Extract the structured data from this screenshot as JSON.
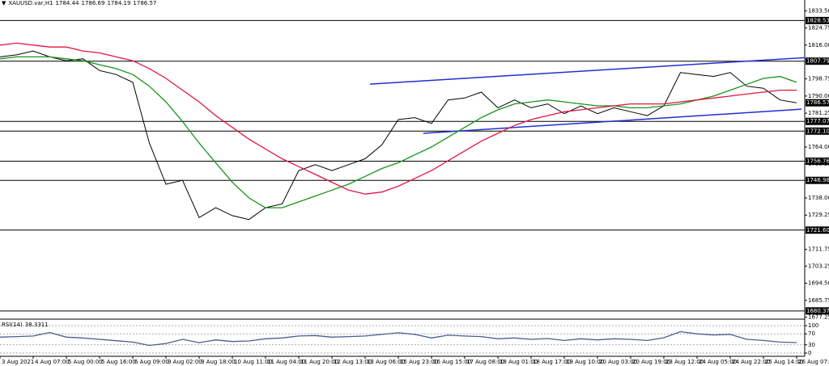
{
  "chart_data": [
    {
      "type": "line",
      "symbol": "XAUUSD.var,H1",
      "ohlc": [
        1784.44,
        1786.69,
        1784.19,
        1786.57
      ],
      "categories": [
        "3 Aug 2021",
        null,
        "4 Aug 07:00",
        null,
        "5 Aug 00:00",
        null,
        "5 Aug 16:00",
        null,
        "6 Aug 09:00",
        null,
        "9 Aug 02:00",
        null,
        "9 Aug 18:00",
        null,
        "10 Aug 11:00",
        null,
        "11 Aug 04:00",
        null,
        "11 Aug 20:00",
        null,
        "12 Aug 13:00",
        null,
        "13 Aug 06:00",
        null,
        "15 Aug 23:00",
        null,
        "16 Aug 15:00",
        null,
        "17 Aug 08:00",
        null,
        "18 Aug 01:00",
        null,
        "18 Aug 17:00",
        null,
        "19 Aug 10:00",
        null,
        "20 Aug 03:00",
        null,
        "20 Aug 19:00",
        null,
        "23 Aug 12:00",
        null,
        "24 Aug 05:00",
        null,
        "24 Aug 22:00",
        null,
        "25 Aug 14:00",
        null,
        "26 Aug 07:00"
      ],
      "series": [
        {
          "color": "#000000",
          "values": [
            1810,
            1811,
            1813,
            1810,
            1808,
            1809,
            1803,
            1801,
            1797,
            1766,
            1745,
            1747,
            1728,
            1733,
            1729,
            1727,
            1733,
            1735,
            1752,
            1755,
            1752,
            1755,
            1758,
            1765,
            1778,
            1779,
            1776,
            1788,
            1789,
            1792,
            1784,
            1788,
            1784,
            1786,
            1781,
            1785,
            1781,
            1784,
            1782,
            1780,
            1785,
            1802,
            1801,
            1800,
            1802,
            1795,
            1794,
            1788,
            1786.57
          ]
        },
        {
          "color": "#17951a",
          "values": [
            1809,
            1810,
            1810,
            1810,
            1809,
            1808,
            1806,
            1804,
            1801,
            1795,
            1787,
            1777,
            1766,
            1756,
            1746,
            1738,
            1733,
            1733,
            1736,
            1739,
            1742,
            1745,
            1749,
            1753,
            1756,
            1760,
            1764,
            1769,
            1774,
            1779,
            1783,
            1786,
            1787,
            1788,
            1787,
            1786,
            1785,
            1785,
            1784,
            1784,
            1785,
            1786,
            1788,
            1790,
            1793,
            1796,
            1799,
            1800,
            1797
          ]
        },
        {
          "color": "#e5163f",
          "values": [
            1816,
            1817,
            1816,
            1815,
            1815,
            1813,
            1812,
            1810,
            1808,
            1804,
            1799,
            1793,
            1787,
            1780,
            1774,
            1768,
            1763,
            1758,
            1754,
            1750,
            1746,
            1742,
            1740,
            1741,
            1744,
            1748,
            1752,
            1757,
            1762,
            1767,
            1771,
            1775,
            1778,
            1780,
            1782,
            1783,
            1784,
            1785,
            1786,
            1786,
            1786,
            1787,
            1788,
            1789,
            1790,
            1791,
            1792,
            1793,
            1793
          ]
        }
      ],
      "ylim": [
        1677,
        1839
      ],
      "yticks": [
        {
          "value": 1833.5,
          "label": "1833.50"
        },
        1824.75,
        {
          "value": 1816,
          "label": "1816.00"
        },
        1798.75,
        {
          "value": 1790,
          "label": "1790.00"
        },
        1781.25,
        {
          "value": 1764,
          "label": "1764.00"
        },
        1755.25,
        {
          "value": 1738,
          "label": "1738.00"
        },
        1729.25,
        1711.75,
        1703.25,
        {
          "value": 1694.5,
          "label": "1694.50"
        },
        1685.75,
        1677.25
      ],
      "levels": [
        1828.53,
        1807.79,
        1777.07,
        {
          "value": 1772.1,
          "label": "1772.10"
        },
        1756.76,
        1746.98,
        {
          "value": 1721.6,
          "label": "1721.60"
        },
        1680.37
      ],
      "last_price": 1786.57,
      "level_color": "#000000",
      "trendline_color": "#1f2fd6",
      "trendlines": [
        {
          "start_index": 22.3,
          "start_value": 1796.1,
          "end_index": 48.5,
          "end_value": 1809.6
        },
        {
          "start_index": 25.5,
          "start_value": 1771.0,
          "end_index": 48.3,
          "end_value": 1783.3
        }
      ]
    },
    {
      "type": "line",
      "title": "RSI(14)",
      "value": 38.3311,
      "series": [
        {
          "color": "#4a5f8f",
          "values": [
            58,
            60,
            62,
            75,
            58,
            55,
            50,
            45,
            40,
            28,
            35,
            50,
            38,
            48,
            42,
            44,
            52,
            55,
            62,
            64,
            58,
            60,
            62,
            68,
            74,
            68,
            55,
            65,
            62,
            60,
            52,
            55,
            50,
            53,
            46,
            52,
            48,
            52,
            50,
            46,
            56,
            78,
            70,
            66,
            68,
            50,
            46,
            40,
            38.3311
          ]
        }
      ],
      "ylim": [
        -12,
        115
      ],
      "yticks": [
        0,
        30,
        70,
        100
      ],
      "grid": true
    }
  ]
}
